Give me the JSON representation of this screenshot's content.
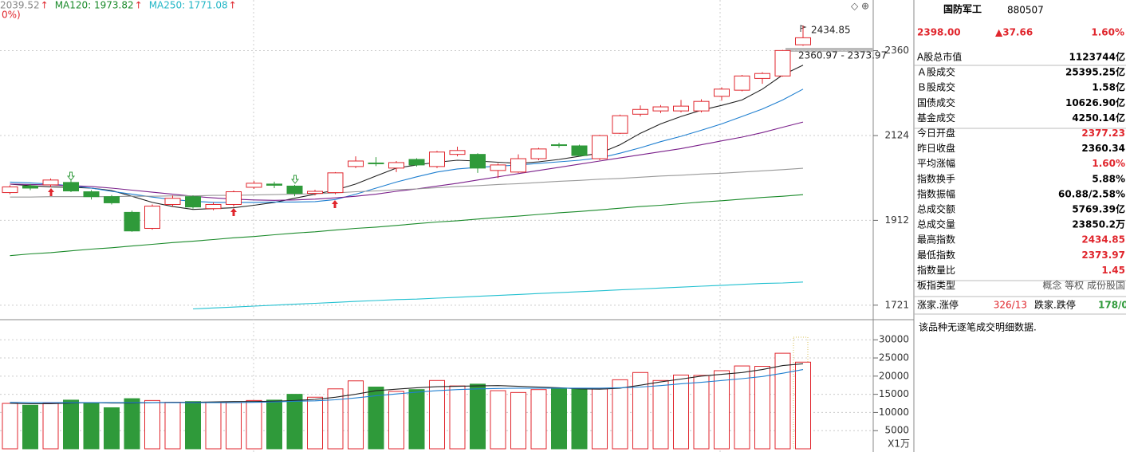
{
  "chart_data": {
    "type": "candlestick",
    "legend": [
      {
        "label": "2039.52",
        "arrow": "↑",
        "color": "#888888"
      },
      {
        "label": "MA120: 1973.82",
        "arrow": "↑",
        "color": "#1a8a2a"
      },
      {
        "label": "MA250: 1771.08",
        "arrow": "↑",
        "color": "#21b6c6"
      }
    ],
    "legend_tail": "0%)",
    "ylim": [
      1692,
      2513
    ],
    "log": true,
    "yticks": [
      2360,
      2124,
      1912,
      1721
    ],
    "up_color": "#e0262d",
    "down_color": "#2f9a3a",
    "candles": {
      "open": [
        1979,
        1995,
        1998,
        2004,
        1981,
        1969,
        1931,
        1893,
        1950,
        1969,
        1940,
        1950,
        1992,
        2000,
        1995,
        1977,
        1979,
        2044,
        2053,
        2040,
        2062,
        2044,
        2075,
        2075,
        2034,
        2030,
        2064,
        2100,
        2097,
        2064,
        2130,
        2181,
        2190,
        2190,
        2190,
        2230,
        2247,
        2280,
        2287,
        2377.23
      ],
      "high": [
        1997,
        2000,
        2014,
        2012,
        1985,
        1973,
        1935,
        1950,
        1972,
        1972,
        1955,
        1984,
        2008,
        2006,
        1998,
        1986,
        2030,
        2070,
        2068,
        2058,
        2065,
        2084,
        2095,
        2078,
        2052,
        2075,
        2092,
        2105,
        2100,
        2126,
        2180,
        2205,
        2206,
        2220,
        2222,
        2255,
        2290,
        2298,
        2362,
        2434.85
      ],
      "low": [
        1975,
        1985,
        1992,
        1980,
        1962,
        1950,
        1885,
        1890,
        1945,
        1940,
        1936,
        1945,
        1988,
        1990,
        1970,
        1972,
        1975,
        2040,
        2045,
        2030,
        2044,
        2040,
        2070,
        2028,
        2015,
        2028,
        2060,
        2092,
        2070,
        2060,
        2128,
        2175,
        2184,
        2186,
        2186,
        2218,
        2244,
        2265,
        2285,
        2373.97
      ],
      "close": [
        1993,
        1990,
        2010,
        1983,
        1969,
        1954,
        1887,
        1946,
        1965,
        1944,
        1950,
        1981,
        2002,
        1997,
        1977,
        1982,
        2028,
        2058,
        2051,
        2054,
        2048,
        2081,
        2085,
        2040,
        2048,
        2064,
        2089,
        2098,
        2072,
        2124,
        2177,
        2194,
        2201,
        2203,
        2216,
        2250,
        2287,
        2294,
        2360.34,
        2398
      ]
    },
    "series": [
      {
        "color": "#222222",
        "values": [
          2000,
          1996,
          1993,
          1992,
          1990,
          1984,
          1970,
          1955,
          1945,
          1938,
          1940,
          1942,
          1948,
          1955,
          1965,
          1975,
          1985,
          2000,
          2020,
          2040,
          2048,
          2055,
          2060,
          2058,
          2055,
          2052,
          2056,
          2062,
          2070,
          2078,
          2100,
          2130,
          2155,
          2175,
          2192,
          2205,
          2220,
          2250,
          2290,
          2318
        ]
      },
      {
        "color": "#1f7fd0",
        "values": [
          2005,
          2003,
          2000,
          1996,
          1990,
          1982,
          1975,
          1968,
          1962,
          1958,
          1955,
          1955,
          1955,
          1956,
          1956,
          1957,
          1962,
          1975,
          1990,
          2005,
          2018,
          2030,
          2038,
          2042,
          2045,
          2048,
          2052,
          2056,
          2060,
          2066,
          2078,
          2092,
          2108,
          2122,
          2138,
          2155,
          2175,
          2195,
          2220,
          2250
        ]
      },
      {
        "color": "#7a1f8a",
        "values": [
          2000,
          1999,
          1998,
          1996,
          1994,
          1990,
          1985,
          1980,
          1975,
          1970,
          1966,
          1963,
          1961,
          1960,
          1961,
          1963,
          1966,
          1970,
          1975,
          1982,
          1988,
          1995,
          2002,
          2010,
          2018,
          2026,
          2034,
          2042,
          2050,
          2058,
          2066,
          2074,
          2082,
          2090,
          2100,
          2110,
          2120,
          2132,
          2146,
          2160
        ]
      },
      {
        "color": "#999999",
        "values": [
          1968,
          1968,
          1969,
          1969,
          1969,
          1969,
          1970,
          1970,
          1971,
          1971,
          1972,
          1972,
          1973,
          1974,
          1975,
          1976,
          1978,
          1981,
          1983,
          1986,
          1988,
          1991,
          1994,
          1996,
          1999,
          2001,
          2004,
          2007,
          2009,
          2012,
          2014,
          2017,
          2020,
          2022,
          2025,
          2027,
          2030,
          2033,
          2036,
          2039.52
        ]
      },
      {
        "color": "#1a8a2a",
        "values": [
          1830,
          1834,
          1837,
          1841,
          1845,
          1848,
          1852,
          1856,
          1860,
          1863,
          1867,
          1871,
          1874,
          1878,
          1882,
          1885,
          1889,
          1893,
          1896,
          1900,
          1904,
          1908,
          1911,
          1915,
          1919,
          1922,
          1926,
          1930,
          1933,
          1937,
          1941,
          1945,
          1948,
          1952,
          1956,
          1959,
          1963,
          1967,
          1970,
          1973.82
        ]
      },
      {
        "color": "#21c0d0",
        "values": [
          null,
          null,
          null,
          null,
          null,
          null,
          null,
          null,
          null,
          1713,
          1715,
          1717,
          1719,
          1721,
          1723,
          1725,
          1727,
          1729,
          1731,
          1733,
          1734,
          1736,
          1738,
          1740,
          1742,
          1744,
          1746,
          1748,
          1750,
          1752,
          1754,
          1756,
          1758,
          1760,
          1762,
          1764,
          1766,
          1768,
          1769,
          1771.08
        ]
      }
    ],
    "high_label_index": 39,
    "range_label": "2360.97 - 2373.97",
    "volume": {
      "values": [
        12500,
        12000,
        12500,
        13400,
        12700,
        11300,
        13800,
        13300,
        12800,
        13000,
        12800,
        12700,
        13300,
        13400,
        15000,
        14200,
        16500,
        18700,
        17000,
        15800,
        16300,
        18800,
        17300,
        17800,
        16000,
        15500,
        16300,
        16700,
        16600,
        16500,
        19000,
        21000,
        18800,
        20300,
        20200,
        21500,
        22800,
        22700,
        26300,
        23850
      ],
      "ylim": [
        0,
        35100
      ],
      "yticks": [
        30000,
        25000,
        20000,
        15000,
        10000,
        5000
      ],
      "unit": "X1万",
      "series": [
        {
          "color": "#222222",
          "values": [
            12500,
            12400,
            12400,
            12600,
            12700,
            12600,
            12600,
            12700,
            12800,
            12800,
            12900,
            13000,
            13000,
            13100,
            13300,
            13600,
            14200,
            15000,
            16000,
            16400,
            16800,
            17100,
            17200,
            17300,
            17400,
            17200,
            17000,
            16800,
            16500,
            16400,
            16700,
            17500,
            18400,
            19200,
            20000,
            20500,
            21000,
            21800,
            22900,
            23400
          ]
        },
        {
          "color": "#1f7fd0",
          "values": [
            12800,
            12700,
            12700,
            12700,
            12700,
            12700,
            12700,
            12700,
            12700,
            12700,
            12700,
            12700,
            12800,
            12900,
            13100,
            13200,
            13500,
            14000,
            14600,
            15100,
            15600,
            16000,
            16300,
            16500,
            16600,
            16700,
            16700,
            16700,
            16700,
            16700,
            16800,
            17000,
            17400,
            17900,
            18300,
            18800,
            19300,
            19900,
            20800,
            21800
          ]
        }
      ]
    }
  },
  "panel": {
    "name": "国防军工",
    "code": "880507",
    "price": "2398.00",
    "change": "▲37.66",
    "pct": "1.60%",
    "rows": [
      {
        "label": "A股总市值",
        "value": "1123744亿",
        "color": "#000000"
      },
      {
        "label": "Ａ股成交",
        "value": "25395.25亿",
        "color": "#000000"
      },
      {
        "label": "Ｂ股成交",
        "value": "1.58亿",
        "color": "#000000"
      },
      {
        "label": "国债成交",
        "value": "10626.90亿",
        "color": "#000000"
      },
      {
        "label": "基金成交",
        "value": "4250.14亿",
        "color": "#000000"
      },
      {
        "label": "今日开盘",
        "value": "2377.23",
        "color": "#e0262d"
      },
      {
        "label": "昨日收盘",
        "value": "2360.34",
        "color": "#000000"
      },
      {
        "label": "平均涨幅",
        "value": "1.60%",
        "color": "#e0262d"
      },
      {
        "label": "指数换手",
        "value": "5.88%",
        "color": "#000000"
      },
      {
        "label": "指数振幅",
        "value": "60.88/2.58%",
        "color": "#000000"
      },
      {
        "label": "总成交额",
        "value": "5769.39亿",
        "color": "#000000"
      },
      {
        "label": "总成交量",
        "value": "23850.2万",
        "color": "#000000"
      },
      {
        "label": "最高指数",
        "value": "2434.85",
        "color": "#e0262d"
      },
      {
        "label": "最低指数",
        "value": "2373.97",
        "color": "#e0262d"
      },
      {
        "label": "指数量比",
        "value": "1.45",
        "color": "#e0262d"
      },
      {
        "label": "板指类型",
        "value": "概念 等权 成份股国",
        "color": "#555555"
      }
    ],
    "breadth": {
      "up_label": "涨家.涨停",
      "up_value": "326/13",
      "down_label": "跌家.跌停",
      "down_value": "178/0"
    },
    "note": "该品种无逐笔成交明细数据."
  }
}
